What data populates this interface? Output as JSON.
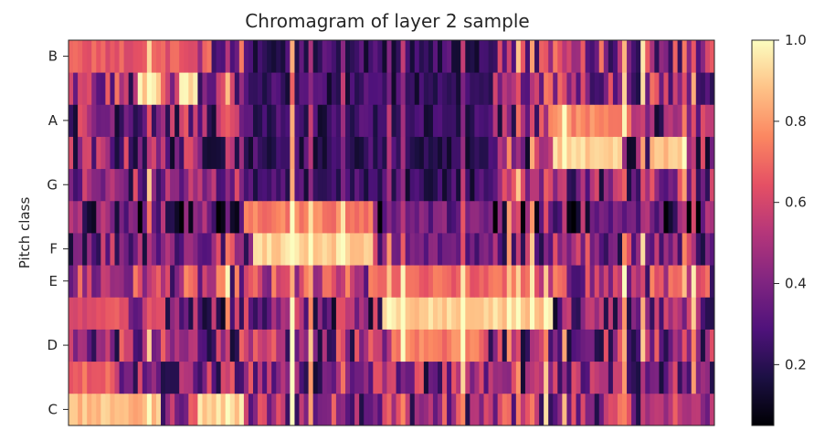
{
  "chart_data": {
    "type": "heatmap",
    "title": "Chromagram of layer 2 sample",
    "xlabel": "",
    "ylabel": "Pitch class",
    "y_tick_labels": [
      "C",
      "D",
      "E",
      "F",
      "G",
      "A",
      "B"
    ],
    "y_tick_rows": [
      0,
      2,
      4,
      5,
      7,
      9,
      11
    ],
    "rows_bottom_to_top": [
      "C",
      "C#",
      "D",
      "D#",
      "E",
      "F",
      "F#",
      "G",
      "G#",
      "A",
      "A#",
      "B"
    ],
    "n_frames": 140,
    "colormap": "magma",
    "colorbar": {
      "range": [
        0.05,
        1.0
      ],
      "ticks": [
        0.2,
        0.4,
        0.6,
        0.8,
        1.0
      ],
      "tick_labels": [
        "0.2",
        "0.4",
        "0.6",
        "0.8",
        "1.0"
      ]
    },
    "baseline_by_row": [
      0.45,
      0.4,
      0.42,
      0.38,
      0.5,
      0.42,
      0.3,
      0.4,
      0.38,
      0.4,
      0.45,
      0.48
    ],
    "bright_regions": [
      {
        "row": "C",
        "frames": [
          0,
          20
        ],
        "value": 0.93
      },
      {
        "row": "C",
        "frames": [
          28,
          38
        ],
        "value": 0.98
      },
      {
        "row": "C#",
        "frames": [
          0,
          10
        ],
        "value": 0.75
      },
      {
        "row": "D#",
        "frames": [
          0,
          12
        ],
        "value": 0.7
      },
      {
        "row": "D",
        "frames": [
          70,
          90
        ],
        "value": 0.8
      },
      {
        "row": "D#",
        "frames": [
          68,
          105
        ],
        "value": 0.97
      },
      {
        "row": "E",
        "frames": [
          65,
          100
        ],
        "value": 0.75
      },
      {
        "row": "F",
        "frames": [
          40,
          66
        ],
        "value": 0.98
      },
      {
        "row": "F#",
        "frames": [
          38,
          66
        ],
        "value": 0.8
      },
      {
        "row": "G#",
        "frames": [
          105,
          120
        ],
        "value": 0.98
      },
      {
        "row": "G#",
        "frames": [
          126,
          134
        ],
        "value": 0.95
      },
      {
        "row": "A",
        "frames": [
          104,
          122
        ],
        "value": 0.82
      },
      {
        "row": "A#",
        "frames": [
          15,
          20
        ],
        "value": 0.99
      },
      {
        "row": "A#",
        "frames": [
          24,
          28
        ],
        "value": 0.99
      },
      {
        "row": "B",
        "frames": [
          0,
          28
        ],
        "value": 0.72
      }
    ],
    "dark_regions": [
      {
        "rows": [
          "G",
          "G#",
          "A",
          "A#",
          "B"
        ],
        "frames": [
          38,
          92
        ],
        "value": 0.12
      },
      {
        "rows": [
          "F#",
          "F",
          "E"
        ],
        "frames": [
          70,
          92
        ],
        "value": 0.25
      }
    ]
  }
}
